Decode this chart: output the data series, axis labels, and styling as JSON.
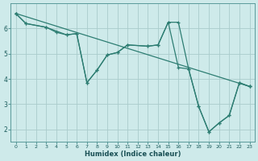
{
  "xlabel": "Humidex (Indice chaleur)",
  "background_color": "#ceeaea",
  "grid_color": "#aacccc",
  "line_color": "#2d7d72",
  "xlim": [
    -0.5,
    23.5
  ],
  "ylim": [
    1.5,
    7.0
  ],
  "xticks": [
    0,
    1,
    2,
    3,
    4,
    5,
    6,
    7,
    8,
    9,
    10,
    11,
    12,
    13,
    14,
    15,
    16,
    17,
    18,
    19,
    20,
    21,
    22,
    23
  ],
  "yticks": [
    2,
    3,
    4,
    5,
    6
  ],
  "line1_x": [
    0,
    23
  ],
  "line1_y": [
    6.6,
    3.7
  ],
  "line2_x": [
    0,
    1,
    3,
    5,
    6,
    7,
    8,
    9,
    10,
    11,
    13,
    14,
    15,
    16,
    17,
    18,
    19,
    20,
    21,
    22,
    23
  ],
  "line2_y": [
    6.6,
    6.2,
    6.05,
    5.75,
    5.8,
    3.85,
    4.35,
    4.95,
    5.05,
    5.35,
    5.3,
    5.35,
    6.25,
    6.25,
    4.4,
    2.9,
    1.9,
    2.25,
    2.55,
    3.85,
    3.7
  ],
  "line3_x": [
    0,
    1,
    3,
    4,
    5,
    6,
    7,
    8,
    9,
    10,
    11,
    13,
    14,
    15,
    16,
    17,
    18,
    19,
    20,
    21,
    22,
    23
  ],
  "line3_y": [
    6.6,
    6.2,
    6.05,
    5.85,
    5.75,
    5.8,
    3.85,
    4.35,
    4.95,
    5.05,
    5.35,
    5.3,
    5.35,
    6.25,
    4.45,
    4.4,
    2.9,
    1.9,
    2.25,
    2.55,
    3.85,
    3.7
  ]
}
